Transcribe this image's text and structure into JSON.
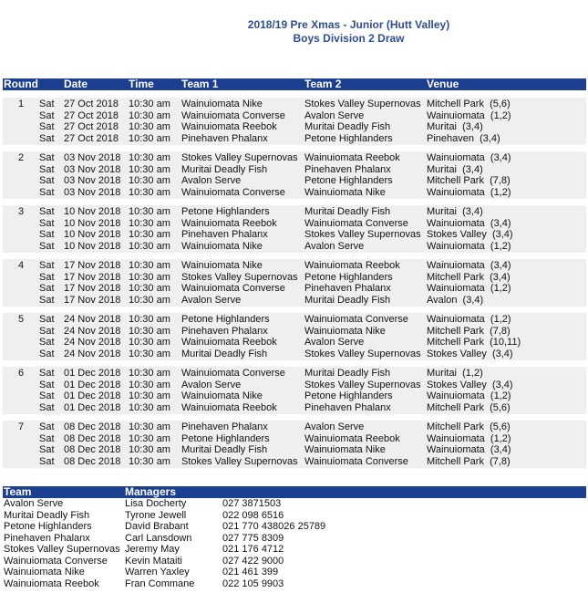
{
  "header": {
    "title": "2018/19 Pre Xmas - Junior (Hutt Valley)",
    "subtitle": "Boys Division 2 Draw"
  },
  "draw": {
    "columns": [
      "Round",
      "Date",
      "Time",
      "Team 1",
      "Team 2",
      "Venue"
    ],
    "rounds": [
      {
        "round": 1,
        "games": [
          [
            "Sat",
            "27 Oct 2018",
            "10:30 am",
            "Wainuiomata Nike",
            "Stokes Valley Supernovas",
            "Mitchell Park  (5,6)"
          ],
          [
            "Sat",
            "27 Oct 2018",
            "10:30 am",
            "Wainuiomata Converse",
            "Avalon Serve",
            "Wainuiomata  (1,2)"
          ],
          [
            "Sat",
            "27 Oct 2018",
            "10:30 am",
            "Wainuiomata Reebok",
            "Muritai Deadly Fish",
            "Muritai  (3,4)"
          ],
          [
            "Sat",
            "27 Oct 2018",
            "10:30 am",
            "Pinehaven Phalanx",
            "Petone Highlanders",
            "Pinehaven  (3,4)"
          ]
        ]
      },
      {
        "round": 2,
        "games": [
          [
            "Sat",
            "03 Nov 2018",
            "10:30 am",
            "Stokes Valley Supernovas",
            "Wainuiomata Reebok",
            "Wainuiomata  (3,4)"
          ],
          [
            "Sat",
            "03 Nov 2018",
            "10:30 am",
            "Muritai Deadly Fish",
            "Pinehaven Phalanx",
            "Muritai  (3,4)"
          ],
          [
            "Sat",
            "03 Nov 2018",
            "10:30 am",
            "Avalon Serve",
            "Petone Highlanders",
            "Mitchell Park  (7,8)"
          ],
          [
            "Sat",
            "03 Nov 2018",
            "10:30 am",
            "Wainuiomata Converse",
            "Wainuiomata Nike",
            "Wainuiomata  (1,2)"
          ]
        ]
      },
      {
        "round": 3,
        "games": [
          [
            "Sat",
            "10 Nov 2018",
            "10:30 am",
            "Petone Highlanders",
            "Muritai Deadly Fish",
            "Muritai  (3,4)"
          ],
          [
            "Sat",
            "10 Nov 2018",
            "10:30 am",
            "Wainuiomata Reebok",
            "Wainuiomata Converse",
            "Wainuiomata  (3,4)"
          ],
          [
            "Sat",
            "10 Nov 2018",
            "10:30 am",
            "Pinehaven Phalanx",
            "Stokes Valley Supernovas",
            "Stokes Valley  (3,4)"
          ],
          [
            "Sat",
            "10 Nov 2018",
            "10:30 am",
            "Wainuiomata Nike",
            "Avalon Serve",
            "Wainuiomata  (1,2)"
          ]
        ]
      },
      {
        "round": 4,
        "games": [
          [
            "Sat",
            "17 Nov 2018",
            "10:30 am",
            "Wainuiomata Nike",
            "Wainuiomata Reebok",
            "Wainuiomata  (3,4)"
          ],
          [
            "Sat",
            "17 Nov 2018",
            "10:30 am",
            "Stokes Valley Supernovas",
            "Petone Highlanders",
            "Mitchell Park  (3,4)"
          ],
          [
            "Sat",
            "17 Nov 2018",
            "10:30 am",
            "Wainuiomata Converse",
            "Pinehaven Phalanx",
            "Wainuiomata  (1,2)"
          ],
          [
            "Sat",
            "17 Nov 2018",
            "10:30 am",
            "Avalon Serve",
            "Muritai Deadly Fish",
            "Avalon  (3,4)"
          ]
        ]
      },
      {
        "round": 5,
        "games": [
          [
            "Sat",
            "24 Nov 2018",
            "10:30 am",
            "Petone Highlanders",
            "Wainuiomata Converse",
            "Wainuiomata  (1,2)"
          ],
          [
            "Sat",
            "24 Nov 2018",
            "10:30 am",
            "Pinehaven Phalanx",
            "Wainuiomata Nike",
            "Mitchell Park  (7,8)"
          ],
          [
            "Sat",
            "24 Nov 2018",
            "10:30 am",
            "Wainuiomata Reebok",
            "Avalon Serve",
            "Mitchell Park  (10,11)"
          ],
          [
            "Sat",
            "24 Nov 2018",
            "10:30 am",
            "Muritai Deadly Fish",
            "Stokes Valley Supernovas",
            "Stokes Valley  (3,4)"
          ]
        ]
      },
      {
        "round": 6,
        "games": [
          [
            "Sat",
            "01 Dec 2018",
            "10:30 am",
            "Wainuiomata Converse",
            "Muritai Deadly Fish",
            "Muritai  (1,2)"
          ],
          [
            "Sat",
            "01 Dec 2018",
            "10:30 am",
            "Avalon Serve",
            "Stokes Valley Supernovas",
            "Stokes Valley  (3,4)"
          ],
          [
            "Sat",
            "01 Dec 2018",
            "10:30 am",
            "Wainuiomata Nike",
            "Petone Highlanders",
            "Wainuiomata  (1,2)"
          ],
          [
            "Sat",
            "01 Dec 2018",
            "10:30 am",
            "Wainuiomata Reebok",
            "Pinehaven Phalanx",
            "Mitchell Park  (5,6)"
          ]
        ]
      },
      {
        "round": 7,
        "games": [
          [
            "Sat",
            "08 Dec 2018",
            "10:30 am",
            "Pinehaven Phalanx",
            "Avalon Serve",
            "Mitchell Park  (5,6)"
          ],
          [
            "Sat",
            "08 Dec 2018",
            "10:30 am",
            "Petone Highlanders",
            "Wainuiomata Reebok",
            "Wainuiomata  (1,2)"
          ],
          [
            "Sat",
            "08 Dec 2018",
            "10:30 am",
            "Muritai Deadly Fish",
            "Wainuiomata Nike",
            "Wainuiomata  (3,4)"
          ],
          [
            "Sat",
            "08 Dec 2018",
            "10:30 am",
            "Stokes Valley Supernovas",
            "Wainuiomata Converse",
            "Mitchell Park  (7,8)"
          ]
        ]
      }
    ]
  },
  "managers": {
    "columns": [
      "Team",
      "Managers"
    ],
    "rows": [
      [
        "Avalon Serve",
        "Lisa Docherty",
        "027 3871503"
      ],
      [
        "Muritai Deadly Fish",
        "Tyrone Jewell",
        "022 098 6516"
      ],
      [
        "Petone Highlanders",
        "David Brabant",
        "021 770 438026 25789"
      ],
      [
        "Pinehaven Phalanx",
        "Carl Lansdown",
        "027 775 8309"
      ],
      [
        "Stokes Valley Supernovas",
        "Jeremy May",
        "021 176 4712"
      ],
      [
        "Wainuiomata Converse",
        "Kevin Mataiti",
        "027 422 9000"
      ],
      [
        "Wainuiomata Nike",
        "Warren Yaxley",
        "021 461 399"
      ],
      [
        "Wainuiomata Reebok",
        "Fran Commane",
        "022 105 9903"
      ]
    ]
  }
}
